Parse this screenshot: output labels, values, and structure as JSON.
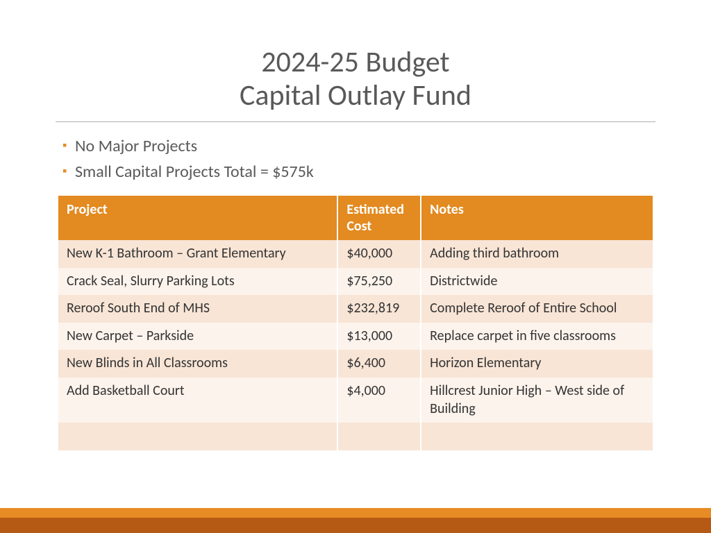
{
  "title": {
    "line1": "2024-25 Budget",
    "line2": "Capital Outlay Fund",
    "color": "#595959",
    "fontsize": 42
  },
  "bullets": [
    "No Major Projects",
    "Small Capital Projects Total = $575k"
  ],
  "bullet_marker_color": "#e88c2a",
  "bullet_text_color": "#595959",
  "bullet_fontsize": 24,
  "table": {
    "header_bg": "#e38a20",
    "header_fg": "#ffffff",
    "row_odd_bg": "#f8e5d6",
    "row_even_bg": "#fcf3ec",
    "cell_fg": "#333333",
    "fontsize": 20,
    "col_widths_pct": [
      47,
      14,
      39
    ],
    "columns": [
      "Project",
      "Estimated Cost",
      "Notes"
    ],
    "rows": [
      [
        "New K-1 Bathroom – Grant Elementary",
        "$40,000",
        "Adding third bathroom"
      ],
      [
        "Crack Seal, Slurry  Parking Lots",
        "$75,250",
        "Districtwide"
      ],
      [
        "Reroof South End of MHS",
        "$232,819",
        "Complete Reroof of Entire School"
      ],
      [
        "New Carpet – Parkside",
        "$13,000",
        "Replace carpet in five classrooms"
      ],
      [
        "New Blinds in All Classrooms",
        "$6,400",
        "Horizon Elementary"
      ],
      [
        "Add Basketball Court",
        "$4,000",
        "Hillcrest Junior High – West side of Building"
      ],
      [
        "",
        "",
        ""
      ]
    ]
  },
  "footer": {
    "bar1_color": "#e78b24",
    "bar2_color": "#b55a15"
  }
}
